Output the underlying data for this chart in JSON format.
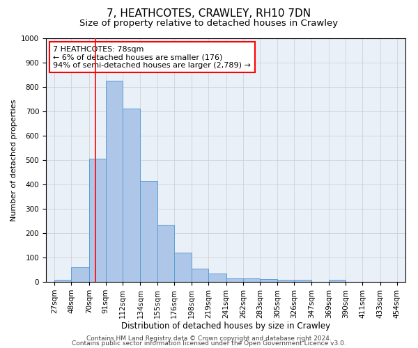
{
  "title": "7, HEATHCOTES, CRAWLEY, RH10 7DN",
  "subtitle": "Size of property relative to detached houses in Crawley",
  "xlabel": "Distribution of detached houses by size in Crawley",
  "ylabel": "Number of detached properties",
  "bar_edges": [
    27,
    48,
    70,
    91,
    112,
    134,
    155,
    176,
    198,
    219,
    241,
    262,
    283,
    305,
    326,
    347,
    369,
    390,
    411,
    433,
    454
  ],
  "bar_heights": [
    10,
    60,
    505,
    825,
    710,
    415,
    235,
    120,
    55,
    35,
    15,
    15,
    12,
    10,
    10,
    0,
    8,
    0,
    0,
    0
  ],
  "bar_color": "#aec6e8",
  "bar_edge_color": "#5a9fd4",
  "red_line_x": 78,
  "annotation_box_text": "7 HEATHCOTES: 78sqm\n← 6% of detached houses are smaller (176)\n94% of semi-detached houses are larger (2,789) →",
  "ylim": [
    0,
    1000
  ],
  "yticks": [
    0,
    100,
    200,
    300,
    400,
    500,
    600,
    700,
    800,
    900,
    1000
  ],
  "grid_color": "#cccccc",
  "background_color": "#eaf0f8",
  "footer_line1": "Contains HM Land Registry data © Crown copyright and database right 2024.",
  "footer_line2": "Contains public sector information licensed under the Open Government Licence v3.0.",
  "title_fontsize": 11,
  "subtitle_fontsize": 9.5,
  "xlabel_fontsize": 8.5,
  "ylabel_fontsize": 8,
  "tick_fontsize": 7.5,
  "annotation_fontsize": 8,
  "footer_fontsize": 6.5
}
